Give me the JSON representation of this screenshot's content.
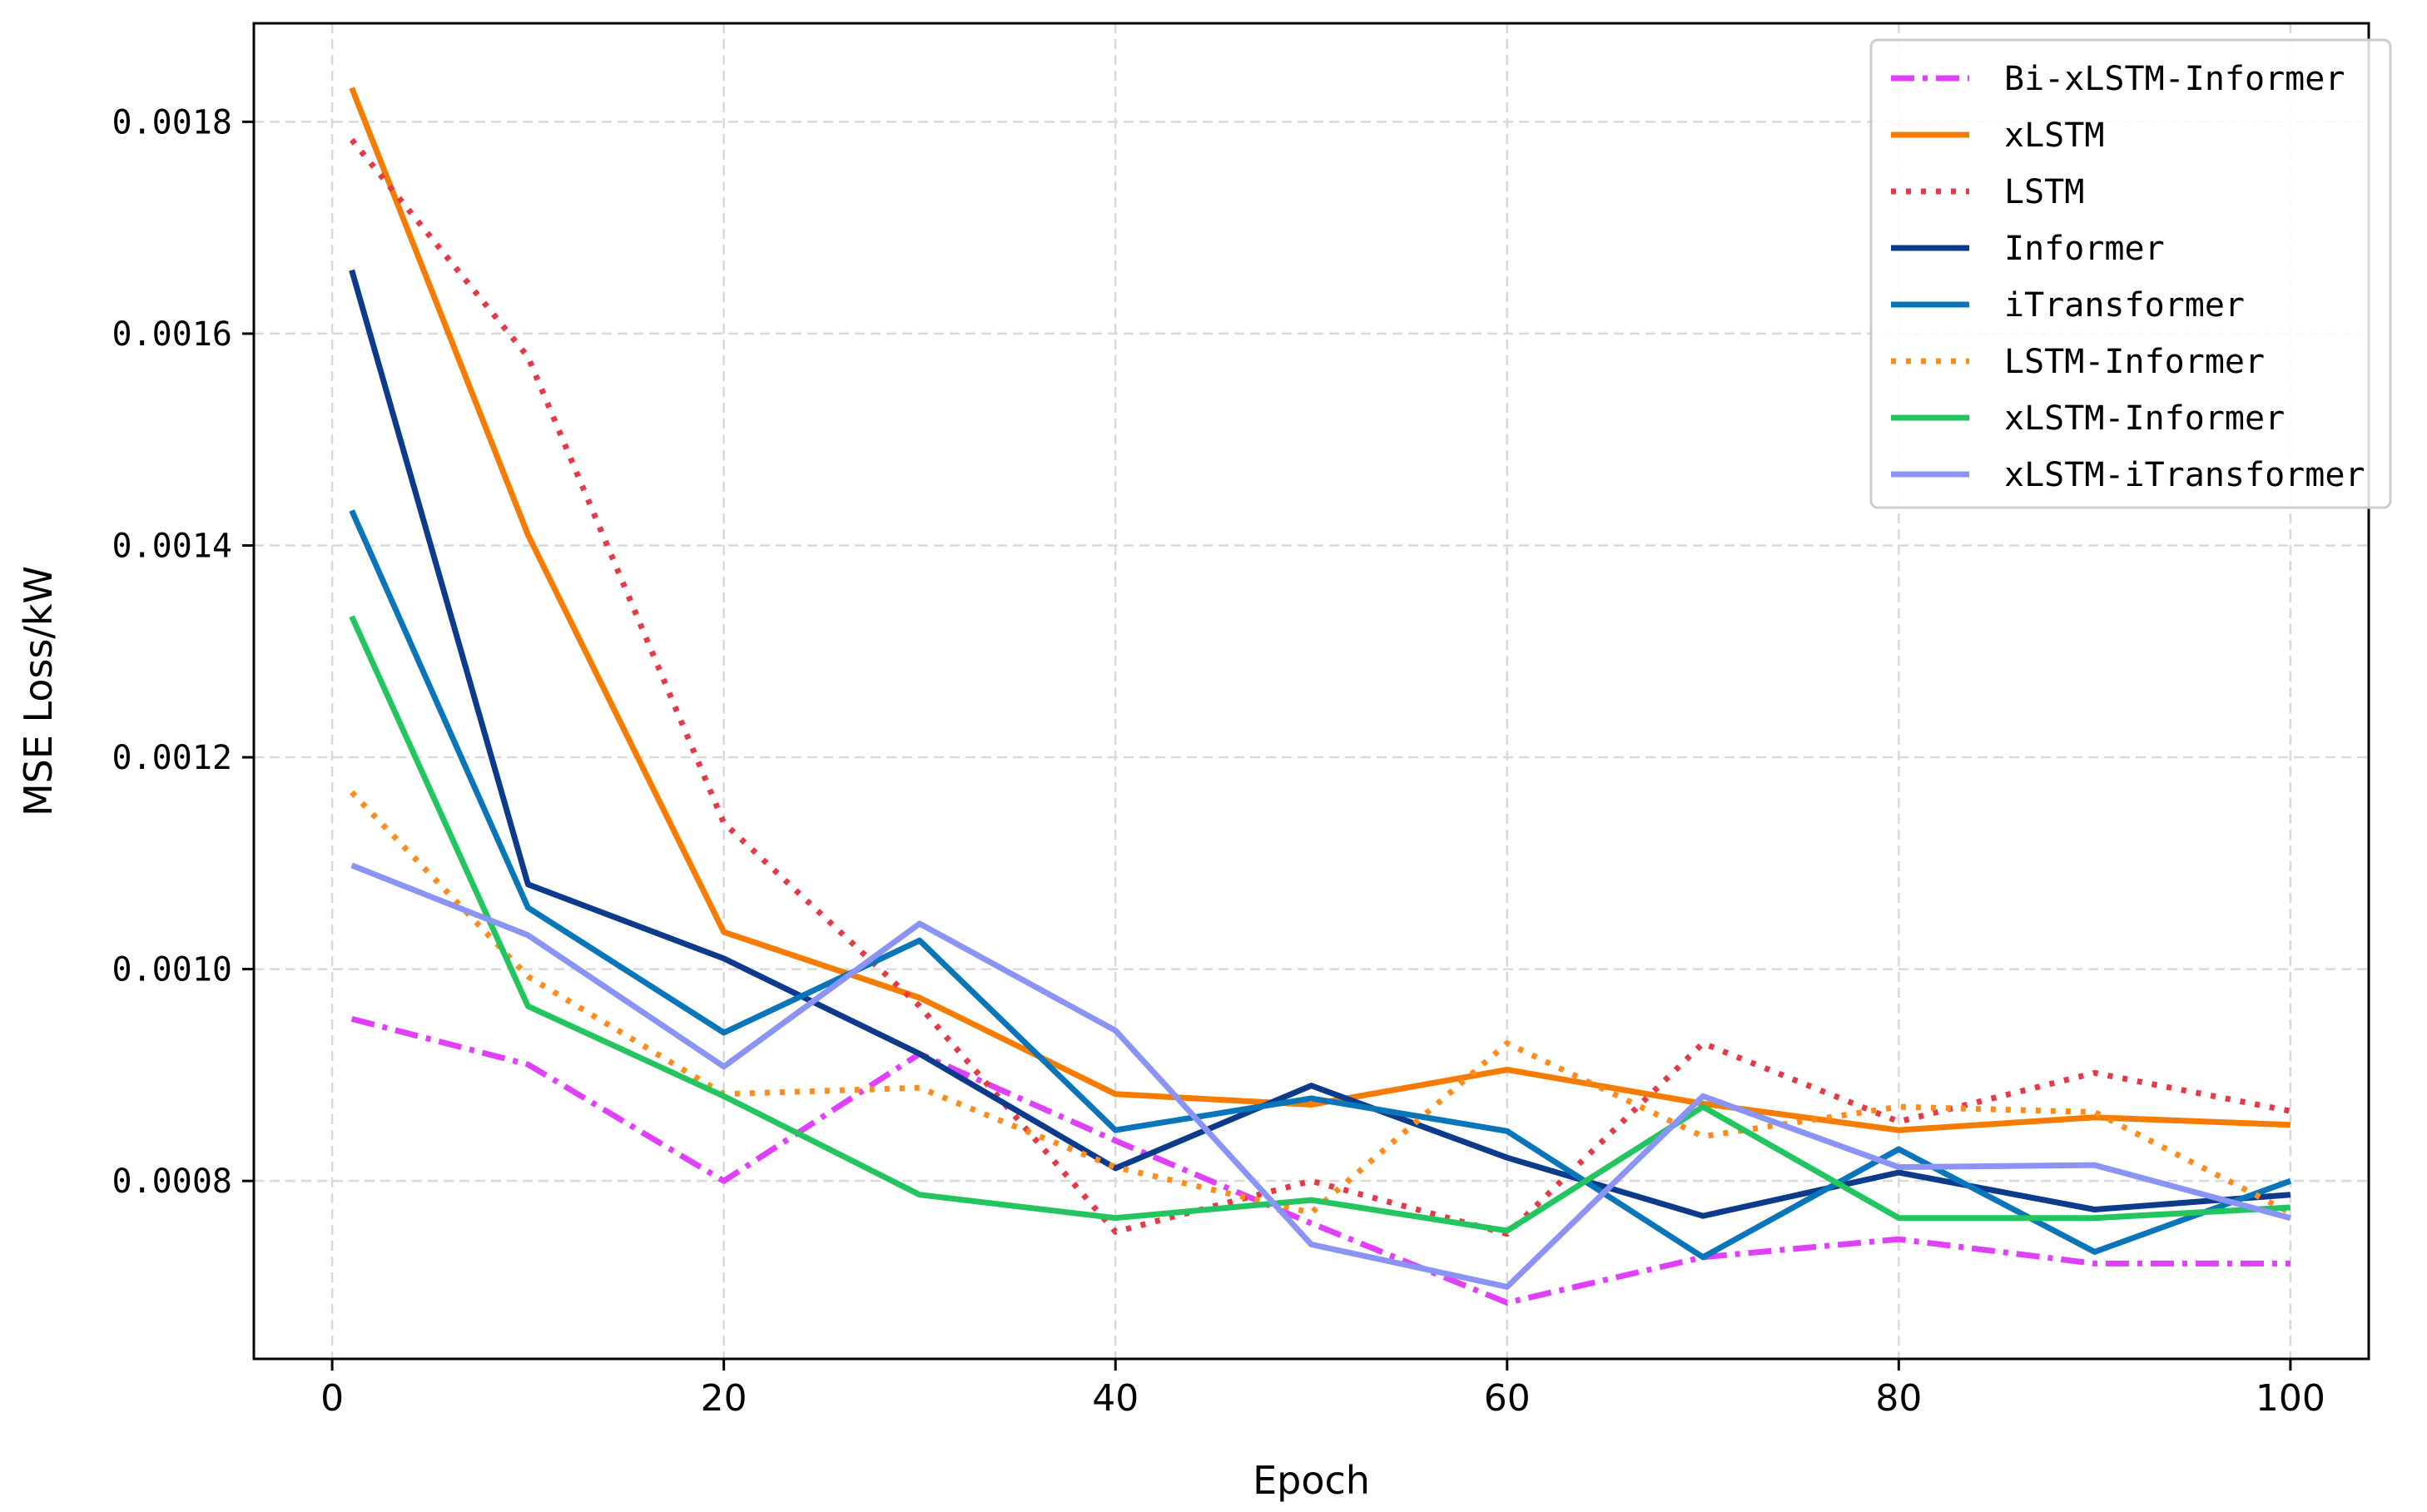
{
  "chart_data": {
    "type": "line",
    "title": "",
    "xlabel": "Epoch",
    "ylabel": "MSE Loss/kW",
    "xlim": [
      -4,
      104
    ],
    "ylim": [
      0.000632,
      0.001893
    ],
    "xticks": [
      0,
      20,
      40,
      60,
      80,
      100
    ],
    "xtick_labels": [
      "0",
      "20",
      "40",
      "60",
      "80",
      "100"
    ],
    "yticks": [
      0.0008,
      0.001,
      0.0012,
      0.0014,
      0.0016,
      0.0018
    ],
    "ytick_labels": [
      "0.0008",
      "0.0010",
      "0.0012",
      "0.0014",
      "0.0016",
      "0.0018"
    ],
    "grid": true,
    "legend_position": "top-right",
    "x": [
      1,
      10,
      20,
      30,
      40,
      50,
      60,
      70,
      80,
      90,
      100
    ],
    "series": [
      {
        "name": "Bi-xLSTM-Informer",
        "color": "#e040fb",
        "dash": "dashdot",
        "values": [
          0.000953,
          0.00091,
          0.0008,
          0.00092,
          0.000838,
          0.00076,
          0.000685,
          0.000728,
          0.000745,
          0.000722,
          0.000722
        ]
      },
      {
        "name": "xLSTM",
        "color": "#f57c00",
        "dash": "solid",
        "values": [
          0.001832,
          0.00141,
          0.001035,
          0.000973,
          0.000882,
          0.000872,
          0.000905,
          0.000873,
          0.000848,
          0.00086,
          0.000853
        ]
      },
      {
        "name": "LSTM",
        "color": "#e53945",
        "dash": "dotted",
        "values": [
          0.001783,
          0.001578,
          0.001138,
          0.000965,
          0.000752,
          0.0008,
          0.00075,
          0.00093,
          0.000856,
          0.000902,
          0.000866
        ]
      },
      {
        "name": "Informer",
        "color": "#0d3b8c",
        "dash": "solid",
        "values": [
          0.00166,
          0.00108,
          0.00101,
          0.00092,
          0.000812,
          0.00089,
          0.000822,
          0.000767,
          0.000808,
          0.000773,
          0.000787
        ]
      },
      {
        "name": "iTransformer",
        "color": "#0a75b8",
        "dash": "solid",
        "values": [
          0.001433,
          0.001058,
          0.00094,
          0.001027,
          0.000848,
          0.000878,
          0.000847,
          0.000728,
          0.00083,
          0.000733,
          0.0008
        ]
      },
      {
        "name": "LSTM-Informer",
        "color": "#ff8c1a",
        "dash": "dotted",
        "values": [
          0.001167,
          0.000993,
          0.000882,
          0.000888,
          0.000813,
          0.00077,
          0.00093,
          0.000842,
          0.00087,
          0.000865,
          0.00077
        ]
      },
      {
        "name": "xLSTM-Informer",
        "color": "#22c55e",
        "dash": "solid",
        "values": [
          0.001333,
          0.000965,
          0.00088,
          0.000787,
          0.000765,
          0.000782,
          0.000753,
          0.00087,
          0.000765,
          0.000765,
          0.000775
        ]
      },
      {
        "name": "xLSTM-iTransformer",
        "color": "#8a94f5",
        "dash": "solid",
        "values": [
          0.001098,
          0.001032,
          0.000908,
          0.001043,
          0.000942,
          0.00074,
          0.0007,
          0.00088,
          0.000813,
          0.000815,
          0.000765
        ]
      }
    ]
  }
}
